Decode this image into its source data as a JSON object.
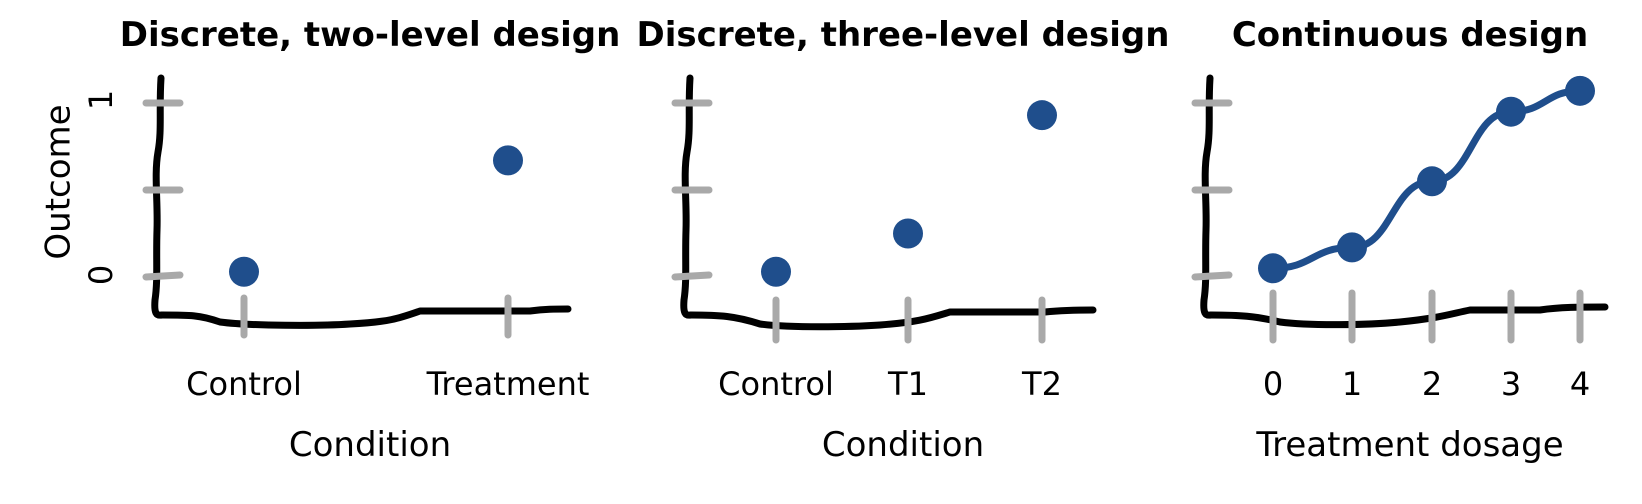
{
  "colors": {
    "axis": "#000000",
    "tick": "#a9a9a9",
    "point": "#1f4e8c"
  },
  "shared_ylabel": "Outcome",
  "chart_data": [
    {
      "type": "scatter",
      "title": "Discrete, two-level design",
      "xlabel": "Condition",
      "ylabel": "Outcome",
      "categories": [
        "Control",
        "Treatment"
      ],
      "values": [
        0.03,
        0.67
      ],
      "ylim": [
        0,
        1
      ],
      "yticks": [
        0,
        0.5,
        1
      ],
      "ytick_labels": [
        "0",
        "",
        "1"
      ],
      "grid": false
    },
    {
      "type": "scatter",
      "title": "Discrete, three-level design",
      "xlabel": "Condition",
      "categories": [
        "Control",
        "T1",
        "T2"
      ],
      "values": [
        0.03,
        0.25,
        0.93
      ],
      "ylim": [
        0,
        1
      ],
      "yticks": [
        0,
        0.5,
        1
      ],
      "grid": false
    },
    {
      "type": "line",
      "title": "Continuous design",
      "xlabel": "Treatment dosage",
      "x": [
        0,
        1,
        2,
        3,
        4
      ],
      "xtick_labels": [
        "0",
        "1",
        "2",
        "3",
        "4"
      ],
      "values": [
        0.05,
        0.17,
        0.55,
        0.95,
        1.07
      ],
      "ylim": [
        0,
        1
      ],
      "yticks": [
        0,
        0.5,
        1
      ],
      "grid": false
    }
  ]
}
